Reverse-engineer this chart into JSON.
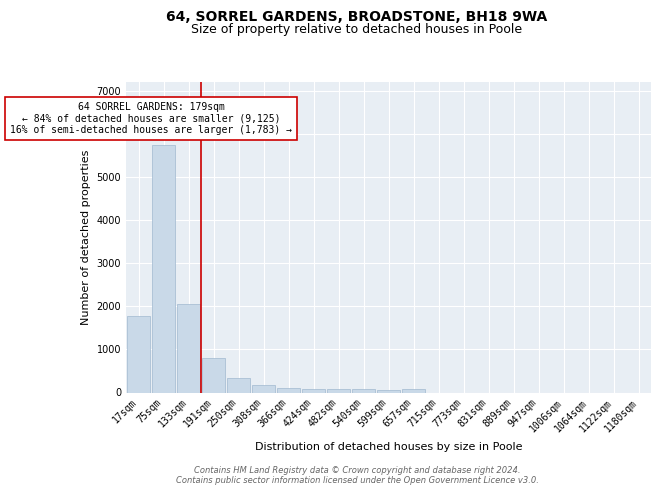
{
  "title1": "64, SORREL GARDENS, BROADSTONE, BH18 9WA",
  "title2": "Size of property relative to detached houses in Poole",
  "xlabel": "Distribution of detached houses by size in Poole",
  "ylabel": "Number of detached properties",
  "bar_labels": [
    "17sqm",
    "75sqm",
    "133sqm",
    "191sqm",
    "250sqm",
    "308sqm",
    "366sqm",
    "424sqm",
    "482sqm",
    "540sqm",
    "599sqm",
    "657sqm",
    "715sqm",
    "773sqm",
    "831sqm",
    "889sqm",
    "947sqm",
    "1006sqm",
    "1064sqm",
    "1122sqm",
    "1180sqm"
  ],
  "bar_values": [
    1780,
    5750,
    2050,
    800,
    340,
    185,
    100,
    90,
    85,
    70,
    65,
    85,
    0,
    0,
    0,
    0,
    0,
    0,
    0,
    0,
    0
  ],
  "bar_color": "#c9d9e8",
  "bar_edge_color": "#a0b8d0",
  "vline_color": "#cc0000",
  "annotation_text": "64 SORREL GARDENS: 179sqm\n← 84% of detached houses are smaller (9,125)\n16% of semi-detached houses are larger (1,783) →",
  "annotation_box_color": "#ffffff",
  "annotation_box_edge": "#cc0000",
  "ylim": [
    0,
    7200
  ],
  "yticks": [
    0,
    1000,
    2000,
    3000,
    4000,
    5000,
    6000,
    7000
  ],
  "bg_color": "#e8eef4",
  "footer_text": "Contains HM Land Registry data © Crown copyright and database right 2024.\nContains public sector information licensed under the Open Government Licence v3.0.",
  "title1_fontsize": 10,
  "title2_fontsize": 9,
  "xlabel_fontsize": 8,
  "ylabel_fontsize": 8,
  "tick_fontsize": 7,
  "annot_fontsize": 7,
  "footer_fontsize": 6
}
